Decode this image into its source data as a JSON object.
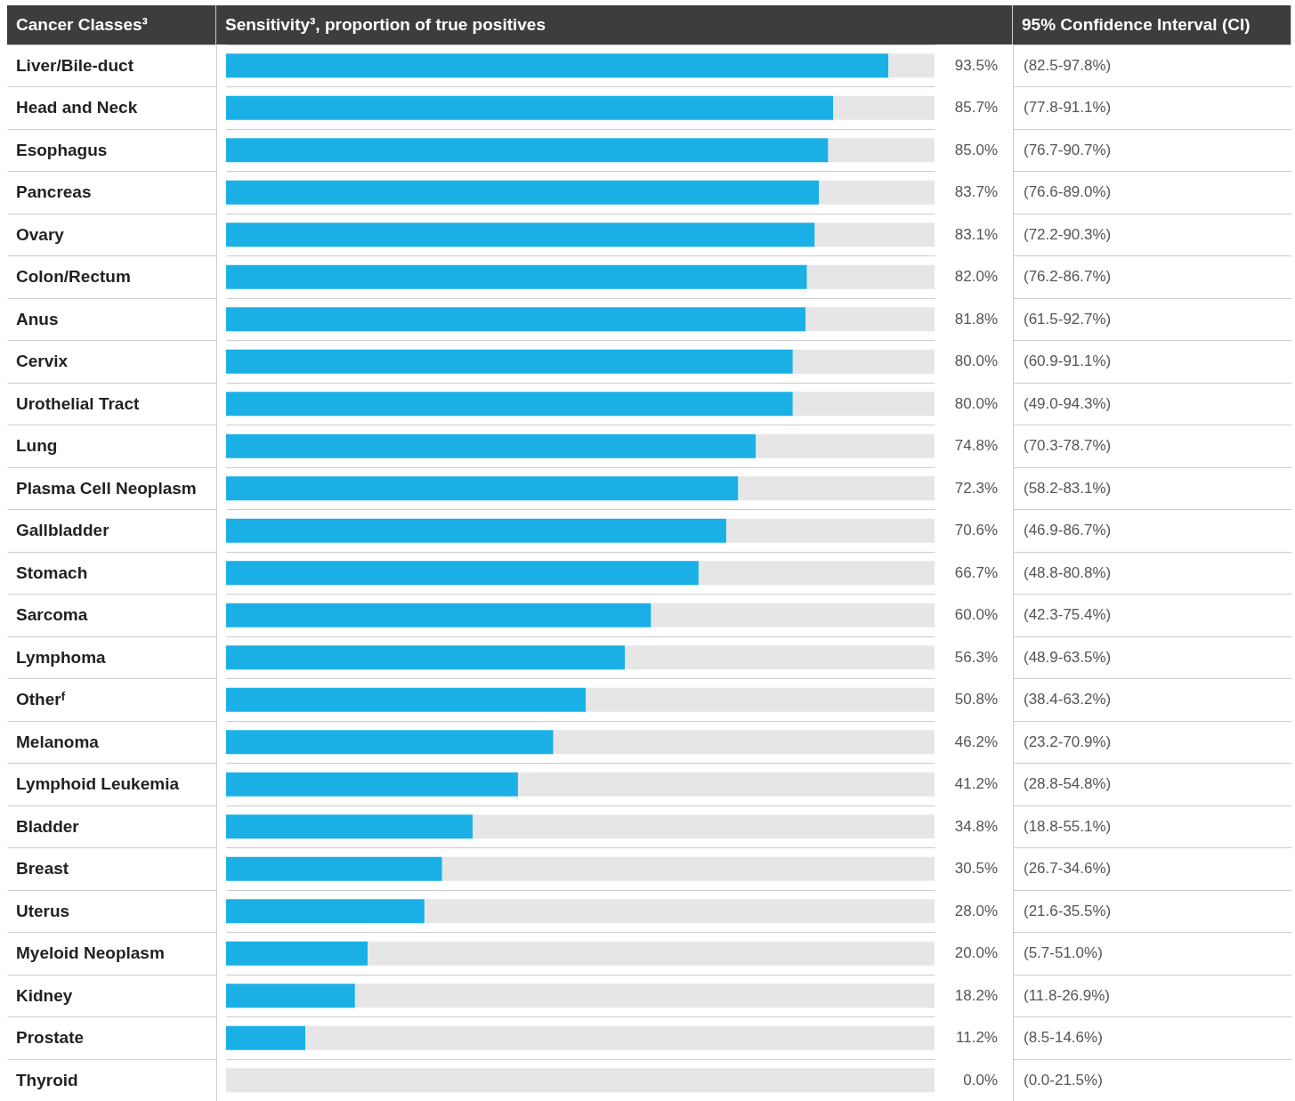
{
  "chart_data": {
    "type": "bar",
    "orientation": "horizontal",
    "ylabel": "Cancer Classes³",
    "xlabel": "Sensitivity³, proportion of true positives",
    "categories": [
      "Liver/Bile-duct",
      "Head and Neck",
      "Esophagus",
      "Pancreas",
      "Ovary",
      "Colon/Rectum",
      "Anus",
      "Cervix",
      "Urothelial Tract",
      "Lung",
      "Plasma Cell Neoplasm",
      "Gallbladder",
      "Stomach",
      "Sarcoma",
      "Lymphoma",
      "Otherᶠ",
      "Melanoma",
      "Lymphoid Leukemia",
      "Bladder",
      "Breast",
      "Uterus",
      "Myeloid Neoplasm",
      "Kidney",
      "Prostate",
      "Thyroid"
    ],
    "stacked": true,
    "series": [
      {
        "color": "#1ab0e6",
        "values": [
          93.5,
          85.7,
          85.0,
          83.7,
          83.1,
          82.0,
          81.8,
          80.0,
          80.0,
          74.8,
          72.3,
          70.6,
          66.7,
          60.0,
          56.3,
          50.8,
          46.2,
          41.2,
          34.8,
          30.5,
          28.0,
          20.0,
          18.2,
          11.2,
          0.0
        ],
        "value_labels": [
          "93.5%",
          "85.7%",
          "85.0%",
          "83.7%",
          "83.1%",
          "82.0%",
          "81.8%",
          "80.0%",
          "80.0%",
          "74.8%",
          "72.3%",
          "70.6%",
          "66.7%",
          "60.0%",
          "56.3%",
          "50.8%",
          "46.2%",
          "41.2%",
          "34.8%",
          "30.5%",
          "28.0%",
          "20.0%",
          "18.2%",
          "11.2%",
          "0.0%"
        ]
      },
      {
        "color": "#e6e6e6",
        "values": [
          6.5,
          14.3,
          15.0,
          16.3,
          16.9,
          18.0,
          18.2,
          20.0,
          20.0,
          25.2,
          27.7,
          29.4,
          33.3,
          40.0,
          43.7,
          49.2,
          53.8,
          58.8,
          65.2,
          69.5,
          72.0,
          80.0,
          81.8,
          88.8,
          100.0
        ]
      }
    ],
    "xlim": [
      0,
      100
    ],
    "annotations": [
      "95% Confidence Interval (CI)",
      "(82.5-97.8%)",
      "(77.8-91.1%)",
      "(76.7-90.7%)",
      "(76.6-89.0%)",
      "(72.2-90.3%)",
      "(76.2-86.7%)",
      "(61.5-92.7%)",
      "(60.9-91.1%)",
      "(49.0-94.3%)",
      "(70.3-78.7%)",
      "(58.2-83.1%)",
      "(46.9-86.7%)",
      "(48.8-80.8%)",
      "(42.3-75.4%)",
      "(48.9-63.5%)",
      "(38.4-63.2%)",
      "(23.2-70.9%)",
      "(28.8-54.8%)",
      "(18.8-55.1%)",
      "(26.7-34.6%)",
      "(21.6-35.5%)",
      "(5.7-51.0%)",
      "(11.8-26.9%)",
      "(8.5-14.6%)",
      "(0.0-21.5%)"
    ]
  }
}
